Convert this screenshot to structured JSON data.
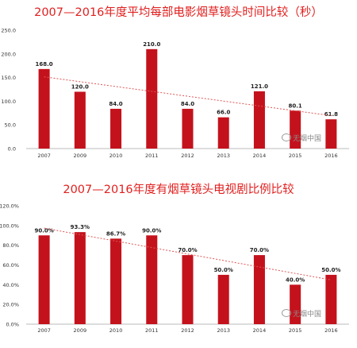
{
  "chart_data": [
    {
      "type": "bar",
      "title": "2007—2016年度平均每部电影烟草镜头时间比较（秒）",
      "categories": [
        "2007",
        "2009",
        "2010",
        "2011",
        "2012",
        "2013",
        "2014",
        "2015",
        "2016"
      ],
      "values": [
        168.0,
        120.0,
        84.0,
        210.0,
        84.0,
        66.0,
        121.0,
        80.1,
        61.8
      ],
      "value_labels": [
        "168.0",
        "120.0",
        "84.0",
        "210.0",
        "84.0",
        "66.0",
        "121.0",
        "80.1",
        "61.8"
      ],
      "yticks": [
        "250.0",
        "200.0",
        "150.0",
        "100.0",
        "50.0",
        "0.0"
      ],
      "ylim": [
        0,
        250
      ],
      "trendline": true,
      "grid": false
    },
    {
      "type": "bar",
      "title": "2007—2016年度有烟草镜头电视剧比例比较",
      "categories": [
        "2007",
        "2009",
        "2010",
        "2011",
        "2012",
        "2013",
        "2014",
        "2015",
        "2016"
      ],
      "values": [
        90.0,
        93.3,
        86.7,
        90.0,
        70.0,
        50.0,
        70.0,
        40.0,
        50.0
      ],
      "value_labels": [
        "90.0%",
        "93.3%",
        "86.7%",
        "90.0%",
        "70.0%",
        "50.0%",
        "70.0%",
        "40.0%",
        "50.0%"
      ],
      "yticks": [
        "120.0%",
        "100.0%",
        "80.0%",
        "60.0%",
        "40.0%",
        "20.0%",
        "0.0%"
      ],
      "ylim": [
        0,
        120
      ],
      "trendline": true,
      "grid": false
    }
  ],
  "colors": {
    "bar": "#c4121c",
    "title": "#e0201f",
    "trend": "#e05555",
    "axis": "#bbbbbb"
  },
  "watermark": {
    "text": "无烟中国",
    "icon": "wechat-icon"
  }
}
